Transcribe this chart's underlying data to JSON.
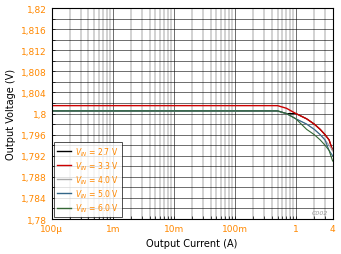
{
  "xlabel": "Output Current (A)",
  "ylabel": "Output Voltage (V)",
  "xlim": [
    0.0001,
    4
  ],
  "ylim": [
    1.78,
    1.82
  ],
  "xtick_vals": [
    0.0001,
    0.001,
    0.01,
    0.1,
    1,
    4
  ],
  "xtick_labels": [
    "100μ",
    "1m",
    "10m",
    "100m",
    "1",
    "4"
  ],
  "ytick_vals": [
    1.78,
    1.782,
    1.784,
    1.786,
    1.788,
    1.79,
    1.792,
    1.794,
    1.796,
    1.798,
    1.8,
    1.802,
    1.804,
    1.806,
    1.808,
    1.81,
    1.812,
    1.814,
    1.816,
    1.818,
    1.82
  ],
  "ytick_labels": [
    "1,78",
    "",
    "1,784",
    "",
    "1,788",
    "",
    "1,792",
    "",
    "1,796",
    "",
    "1,8",
    "",
    "1,804",
    "",
    "1,808",
    "",
    "1,812",
    "",
    "1,816",
    "",
    "1,82"
  ],
  "background_color": "#ffffff",
  "grid_color": "#000000",
  "series": [
    {
      "label": "V_IN = 2.7 V",
      "color": "#000000",
      "linewidth": 0.8,
      "x": [
        0.0001,
        0.0002,
        0.0005,
        0.001,
        0.002,
        0.005,
        0.01,
        0.02,
        0.05,
        0.1,
        0.2,
        0.3,
        0.5,
        0.7,
        1.0,
        1.5,
        2.0,
        2.5,
        3.0,
        3.5,
        4.0
      ],
      "y": [
        1.8005,
        1.8005,
        1.8005,
        1.8005,
        1.8005,
        1.8005,
        1.8005,
        1.8005,
        1.8005,
        1.8005,
        1.8005,
        1.8005,
        1.8005,
        1.8,
        1.8,
        1.799,
        1.798,
        1.797,
        1.796,
        1.795,
        1.793
      ]
    },
    {
      "label": "V_IN = 3.3 V",
      "color": "#cc0000",
      "linewidth": 1.0,
      "x": [
        0.0001,
        0.0002,
        0.0005,
        0.001,
        0.002,
        0.005,
        0.01,
        0.02,
        0.05,
        0.1,
        0.2,
        0.3,
        0.5,
        0.7,
        1.0,
        1.5,
        2.0,
        2.5,
        3.0,
        3.5,
        4.0
      ],
      "y": [
        1.8015,
        1.8015,
        1.8015,
        1.8015,
        1.8015,
        1.8015,
        1.8015,
        1.8015,
        1.8015,
        1.8015,
        1.8015,
        1.8015,
        1.8015,
        1.801,
        1.8,
        1.799,
        1.798,
        1.797,
        1.796,
        1.795,
        1.793
      ]
    },
    {
      "label": "V_IN = 4.0 V",
      "color": "#aaaaaa",
      "linewidth": 0.8,
      "x": [
        0.0001,
        0.0002,
        0.0005,
        0.001,
        0.002,
        0.005,
        0.01,
        0.02,
        0.05,
        0.1,
        0.2,
        0.3,
        0.5,
        0.7,
        1.0,
        1.5,
        2.0,
        2.5,
        3.0,
        3.5,
        4.0
      ],
      "y": [
        1.8005,
        1.8005,
        1.8005,
        1.8005,
        1.8005,
        1.8005,
        1.8005,
        1.8005,
        1.8005,
        1.8005,
        1.8005,
        1.8005,
        1.8005,
        1.8,
        1.799,
        1.798,
        1.797,
        1.796,
        1.795,
        1.794,
        1.793
      ]
    },
    {
      "label": "V_IN = 5.0 V",
      "color": "#336688",
      "linewidth": 0.8,
      "x": [
        0.0001,
        0.0002,
        0.0005,
        0.001,
        0.002,
        0.005,
        0.01,
        0.02,
        0.05,
        0.1,
        0.2,
        0.3,
        0.5,
        0.7,
        1.0,
        1.5,
        2.0,
        2.5,
        3.0,
        3.5,
        4.0
      ],
      "y": [
        1.8005,
        1.8005,
        1.8005,
        1.8005,
        1.8005,
        1.8005,
        1.8005,
        1.8005,
        1.8005,
        1.8005,
        1.8005,
        1.8005,
        1.8005,
        1.8,
        1.799,
        1.798,
        1.797,
        1.796,
        1.795,
        1.793,
        1.792
      ]
    },
    {
      "label": "V_IN = 6.0 V",
      "color": "#336633",
      "linewidth": 0.8,
      "x": [
        0.0001,
        0.0002,
        0.0005,
        0.001,
        0.002,
        0.005,
        0.01,
        0.02,
        0.05,
        0.1,
        0.2,
        0.3,
        0.5,
        0.7,
        1.0,
        1.5,
        2.0,
        2.5,
        3.0,
        3.5,
        4.0
      ],
      "y": [
        1.8005,
        1.8005,
        1.8005,
        1.8005,
        1.8005,
        1.8005,
        1.8005,
        1.8005,
        1.8005,
        1.8005,
        1.8005,
        1.8005,
        1.8005,
        1.8,
        1.799,
        1.797,
        1.796,
        1.795,
        1.794,
        1.793,
        1.791
      ]
    }
  ],
  "legend_fontsize": 5.5,
  "axis_fontsize": 7.0,
  "tick_fontsize": 6.5,
  "tick_color": "#ff8800",
  "watermark": "C002"
}
